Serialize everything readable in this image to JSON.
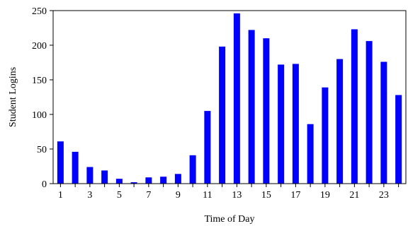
{
  "chart_data": {
    "type": "bar",
    "xlabel": "Time of Day",
    "ylabel": "Student Logins",
    "categories": [
      1,
      2,
      3,
      4,
      5,
      6,
      7,
      8,
      9,
      10,
      11,
      12,
      13,
      14,
      15,
      16,
      17,
      18,
      19,
      20,
      21,
      22,
      23,
      24
    ],
    "values": [
      61,
      46,
      24,
      19,
      7,
      2,
      9,
      10,
      14,
      41,
      105,
      198,
      246,
      222,
      210,
      172,
      173,
      86,
      139,
      180,
      223,
      206,
      176,
      128
    ],
    "ylim": [
      0,
      250
    ],
    "yticks": [
      0,
      50,
      100,
      150,
      200,
      250
    ],
    "xtick_labels": [
      "1",
      "3",
      "5",
      "7",
      "9",
      "11",
      "13",
      "15",
      "17",
      "19",
      "21",
      "23"
    ],
    "grid": false,
    "bar_color": "#0000ff"
  }
}
